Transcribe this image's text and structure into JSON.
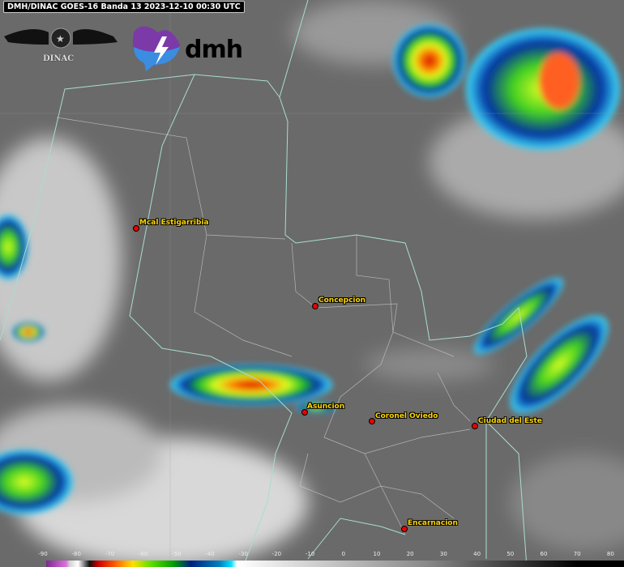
{
  "title": "DMH/DINAC GOES-16 Banda 13 2023-12-10 00:30 UTC",
  "logos": {
    "dinac": "DINAC",
    "dmh": "dmh"
  },
  "cities": [
    {
      "name": "Mcal Estigarribia"
    },
    {
      "name": "Concepcion"
    },
    {
      "name": "Asuncion"
    },
    {
      "name": "Coronel Oviedo"
    },
    {
      "name": "Ciudad del Este"
    },
    {
      "name": "Encarnacion"
    }
  ],
  "colorbar": {
    "ticks": [
      "-90",
      "-80",
      "-70",
      "-60",
      "-50",
      "-40",
      "-30",
      "-20",
      "-10",
      "0",
      "10",
      "20",
      "30",
      "40",
      "50",
      "60",
      "70",
      "80"
    ],
    "colors": [
      "#e070e0",
      "#ff0000",
      "#ffe000",
      "#00a000",
      "#002080",
      "#00e0ff",
      "#ffffff",
      "#000000"
    ]
  }
}
